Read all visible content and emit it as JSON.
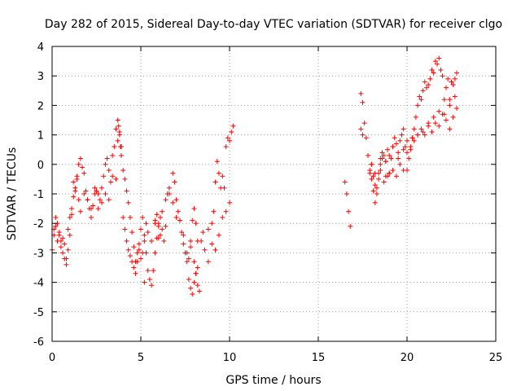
{
  "chart_data": {
    "type": "scatter",
    "title": "Day 282 of 2015, Sidereal Day-to-day VTEC variation (SDTVAR) for receiver clgo",
    "xlabel": "GPS time / hours",
    "ylabel": "SDTVAR / TECUs",
    "xlim": [
      0,
      25
    ],
    "ylim": [
      -6,
      4
    ],
    "xticks": [
      0,
      5,
      10,
      15,
      20,
      25
    ],
    "yticks": [
      -6,
      -5,
      -4,
      -3,
      -2,
      -1,
      0,
      1,
      2,
      3,
      4
    ],
    "xtick_labels": [
      "0",
      "5",
      "10",
      "15",
      "20",
      "25"
    ],
    "ytick_labels": [
      "-6",
      "-5",
      "-4",
      "-3",
      "-2",
      "-1",
      "0",
      "1",
      "2",
      "3",
      "4"
    ],
    "grid": true,
    "marker": "+",
    "color": "#ff0000",
    "series": [
      {
        "name": "SDTVAR",
        "x": [
          0.0,
          0.1,
          0.2,
          0.3,
          0.4,
          0.5,
          0.6,
          0.7,
          0.8,
          0.9,
          1.0,
          1.1,
          1.2,
          1.3,
          1.4,
          1.5,
          1.6,
          1.7,
          1.8,
          1.9,
          2.0,
          2.1,
          2.2,
          2.3,
          2.4,
          2.5,
          2.6,
          2.7,
          2.8,
          2.9,
          3.0,
          3.1,
          3.2,
          3.3,
          3.4,
          3.5,
          3.6,
          3.7,
          3.75,
          3.8,
          3.85,
          3.9,
          4.0,
          4.1,
          4.2,
          4.3,
          4.4,
          4.5,
          4.6,
          4.7,
          4.8,
          4.9,
          5.0,
          5.1,
          5.2,
          5.3,
          5.4,
          5.5,
          5.6,
          5.7,
          5.8,
          5.9,
          6.0,
          6.1,
          6.2,
          6.3,
          6.4,
          6.5,
          6.6,
          6.8,
          6.9,
          7.0,
          7.1,
          7.2,
          7.3,
          7.4,
          7.5,
          7.6,
          7.7,
          7.8,
          7.9,
          8.0,
          8.1,
          8.2,
          8.4,
          8.6,
          8.8,
          9.0,
          9.1,
          9.2,
          9.3,
          9.4,
          9.5,
          9.6,
          9.7,
          9.8,
          9.9,
          10.0,
          10.1,
          10.2,
          0.1,
          0.2,
          0.3,
          0.4,
          0.5,
          0.6,
          0.7,
          0.8,
          0.9,
          1.0,
          1.1,
          1.2,
          1.3,
          1.4,
          1.5,
          1.6,
          1.8,
          2.0,
          2.2,
          2.4,
          2.6,
          2.8,
          3.0,
          3.2,
          3.4,
          3.6,
          3.7,
          3.8,
          3.9,
          4.0,
          4.1,
          4.2,
          4.3,
          4.4,
          4.5,
          4.6,
          4.7,
          4.8,
          4.9,
          5.0,
          5.1,
          5.2,
          5.3,
          5.4,
          5.6,
          5.8,
          6.0,
          6.2,
          6.4,
          6.6,
          6.8,
          7.0,
          7.2,
          7.4,
          7.6,
          7.7,
          7.8,
          7.9,
          8.0,
          8.1,
          8.2,
          8.5,
          8.8,
          9.0,
          9.2,
          9.4,
          9.6,
          9.8,
          10.0,
          16.5,
          16.6,
          16.7,
          16.8,
          17.4,
          17.5,
          17.6,
          17.7,
          17.8,
          17.9,
          18.0,
          18.1,
          18.2,
          18.3,
          18.4,
          18.5,
          18.6,
          18.7,
          18.8,
          18.9,
          19.0,
          19.1,
          19.2,
          19.3,
          19.4,
          19.5,
          19.6,
          19.7,
          19.8,
          19.9,
          20.0,
          20.1,
          20.2,
          20.3,
          20.4,
          20.5,
          20.6,
          20.7,
          20.8,
          20.9,
          21.0,
          21.1,
          21.2,
          21.3,
          21.4,
          21.5,
          21.6,
          21.7,
          21.8,
          21.9,
          22.0,
          22.1,
          22.2,
          22.3,
          22.4,
          22.5,
          22.6,
          22.7,
          22.8,
          17.9,
          18.0,
          18.1,
          18.2,
          18.3,
          18.4,
          18.5,
          18.6,
          18.7,
          18.8,
          18.9,
          19.0,
          19.2,
          19.4,
          19.6,
          19.8,
          20.0,
          20.2,
          20.4,
          20.6,
          20.8,
          21.0,
          21.2,
          21.4,
          21.6,
          21.8,
          22.0,
          22.2,
          22.4,
          22.6,
          22.8,
          17.4,
          17.5,
          18.0,
          18.2,
          18.5,
          18.8,
          19.0,
          19.2,
          19.5,
          19.8,
          20.0,
          20.3,
          20.6,
          20.9,
          21.2,
          21.5,
          21.8,
          22.1,
          22.4,
          22.7,
          7.8,
          8.0,
          8.1,
          8.2,
          8.3,
          6.0,
          6.1,
          5.9,
          5.2,
          5.8
        ],
        "y": [
          -2.9,
          -2.4,
          -2.1,
          -2.6,
          -2.3,
          -2.8,
          -2.5,
          -2.7,
          -3.2,
          -2.2,
          -1.8,
          -1.5,
          -0.6,
          -0.9,
          -0.4,
          0.0,
          0.2,
          -0.1,
          -0.3,
          -0.9,
          -1.2,
          -1.5,
          -1.8,
          -1.4,
          -0.8,
          -0.9,
          -1.0,
          -1.2,
          -0.8,
          -0.4,
          0.0,
          0.2,
          -0.2,
          -0.6,
          0.3,
          0.6,
          1.2,
          1.5,
          1.3,
          1.1,
          0.6,
          0.3,
          -0.2,
          -0.5,
          -0.9,
          -1.3,
          -1.8,
          -2.3,
          -2.8,
          -3.3,
          -3.0,
          -2.7,
          -2.2,
          -1.8,
          -2.4,
          -3.0,
          -3.6,
          -3.9,
          -4.1,
          -3.6,
          -3.0,
          -2.5,
          -2.1,
          -1.8,
          -2.2,
          -2.6,
          -2.1,
          -1.0,
          -0.8,
          -0.3,
          -0.6,
          -1.2,
          -1.6,
          -1.9,
          -2.3,
          -2.7,
          -3.0,
          -3.3,
          -3.9,
          -4.2,
          -4.4,
          -4.0,
          -3.7,
          -3.5,
          -2.6,
          -2.9,
          -3.3,
          -2.0,
          -1.6,
          -0.6,
          0.1,
          -0.3,
          -0.8,
          -0.4,
          -0.8,
          0.6,
          0.9,
          0.8,
          1.1,
          1.3,
          -2.2,
          -1.8,
          -2.0,
          -2.4,
          -2.6,
          -3.0,
          -3.2,
          -3.4,
          -2.9,
          -2.4,
          -1.7,
          -1.1,
          -0.8,
          -0.5,
          -1.2,
          -1.6,
          -1.0,
          -1.2,
          -1.5,
          -1.0,
          -1.5,
          -1.3,
          -1.0,
          -1.2,
          -0.4,
          -0.5,
          0.8,
          1.0,
          0.6,
          -1.8,
          -2.2,
          -2.6,
          -2.9,
          -3.1,
          -3.3,
          -3.5,
          -3.7,
          -3.3,
          -2.9,
          -3.2,
          -3.0,
          -2.6,
          -2.0,
          -2.3,
          -2.6,
          -2.0,
          -2.5,
          -1.6,
          -1.2,
          -1.0,
          -1.3,
          -1.8,
          -1.9,
          -2.4,
          -3.0,
          -3.2,
          -2.6,
          -1.9,
          -1.5,
          -2.0,
          -2.6,
          -2.3,
          -2.2,
          -2.7,
          -2.9,
          -2.4,
          -1.8,
          -1.6,
          -1.3,
          -0.6,
          -1.0,
          -1.6,
          -2.1,
          2.4,
          2.1,
          1.4,
          0.9,
          0.3,
          -0.2,
          -0.5,
          -0.9,
          -1.3,
          -0.8,
          -0.3,
          0.0,
          0.2,
          0.3,
          0.1,
          -0.4,
          -0.3,
          0.2,
          0.6,
          0.9,
          0.7,
          0.4,
          0.8,
          1.0,
          1.2,
          0.6,
          -0.2,
          0.2,
          0.5,
          0.9,
          1.2,
          1.6,
          2.0,
          2.3,
          2.2,
          2.5,
          2.8,
          2.6,
          2.7,
          2.9,
          3.2,
          3.1,
          3.5,
          3.4,
          3.6,
          3.2,
          3.0,
          2.2,
          2.6,
          2.9,
          2.2,
          2.8,
          2.7,
          2.9,
          3.1,
          -0.3,
          0.0,
          -0.4,
          -0.7,
          -1.0,
          -0.5,
          -0.2,
          0.4,
          -0.6,
          0.1,
          0.5,
          -0.3,
          -0.2,
          -0.4,
          0.0,
          -0.2,
          0.4,
          0.6,
          0.8,
          1.0,
          1.2,
          1.0,
          1.3,
          1.1,
          1.4,
          1.3,
          1.7,
          1.5,
          1.2,
          1.6,
          1.9,
          1.2,
          1.0,
          0.0,
          -0.3,
          0.2,
          -0.4,
          0.3,
          0.6,
          0.2,
          0.5,
          0.8,
          0.9,
          1.0,
          1.1,
          1.4,
          1.6,
          1.8,
          1.7,
          2.0,
          2.3,
          -2.8,
          -3.3,
          -3.7,
          -4.1,
          -4.3,
          -2.0,
          -2.4,
          -1.7,
          -4.0,
          -1.9
        ]
      }
    ]
  }
}
